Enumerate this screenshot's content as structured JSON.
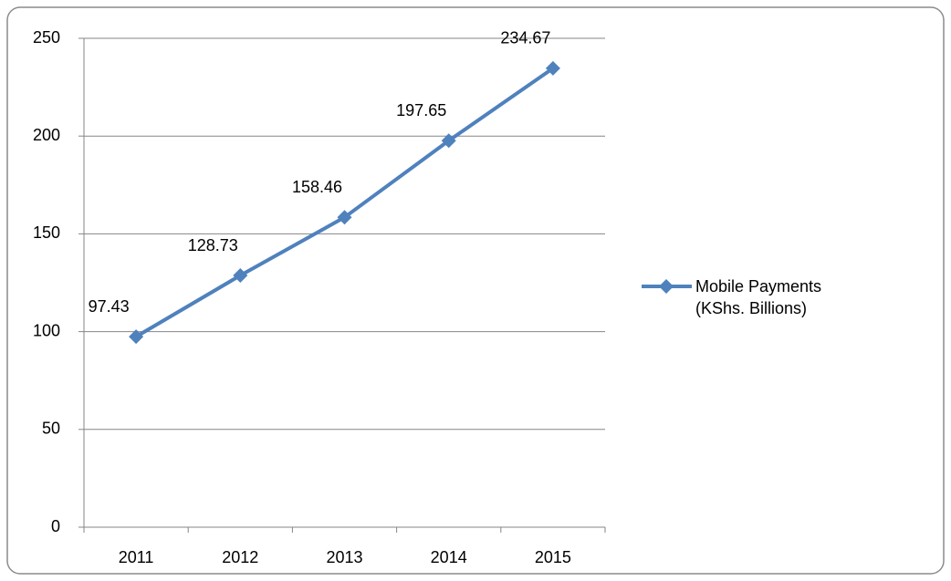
{
  "chart_data": {
    "type": "line",
    "categories": [
      "2011",
      "2012",
      "2013",
      "2014",
      "2015"
    ],
    "series": [
      {
        "name": "Mobile Payments (KShs. Billions)",
        "color": "#4f81bd",
        "values": [
          97.43,
          128.73,
          158.46,
          197.65,
          234.67
        ]
      }
    ],
    "ylim": [
      0,
      250
    ],
    "yticks": [
      0,
      50,
      100,
      150,
      200,
      250
    ],
    "grid": true,
    "legend": "right"
  }
}
